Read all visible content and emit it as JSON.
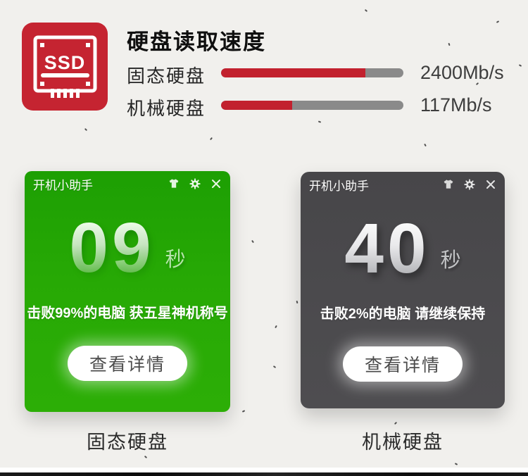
{
  "page": {
    "background": "#f1f0ed"
  },
  "speed_section": {
    "icon_label": "SSD",
    "title": "硬盘读取速度",
    "rows": [
      {
        "label": "固态硬盘",
        "value": "2400Mb/s",
        "fill_percent": "79%"
      },
      {
        "label": "机械硬盘",
        "value": "117Mb/s",
        "fill_percent": "39%"
      }
    ],
    "colors": {
      "icon_bg": "#c52431",
      "bar_fill": "#c2212e",
      "bar_track": "#8a8a8a"
    }
  },
  "windows": [
    {
      "title": "开机小助手",
      "titlebar_icons": [
        "skin-icon",
        "settings-icon",
        "close-icon"
      ],
      "seconds": "09",
      "unit": "秒",
      "tagline": "击败99%的电脑 获五星神机称号",
      "button_label": "查看详情",
      "caption": "固态硬盘",
      "theme_color": "#27a905"
    },
    {
      "title": "开机小助手",
      "titlebar_icons": [
        "skin-icon",
        "settings-icon",
        "close-icon"
      ],
      "seconds": "40",
      "unit": "秒",
      "tagline": "击败2%的电脑 请继续保持",
      "button_label": "查看详情",
      "caption": "机械硬盘",
      "theme_color": "#4b4a4d"
    }
  ]
}
